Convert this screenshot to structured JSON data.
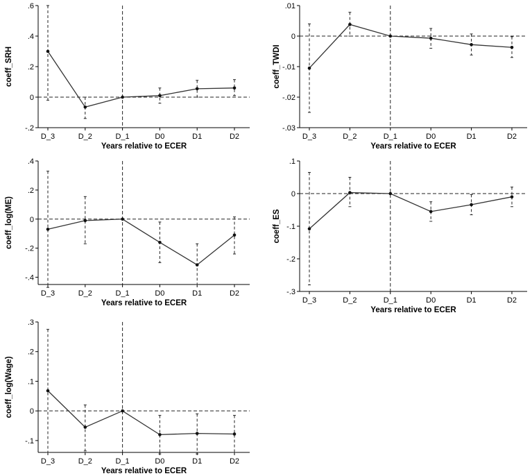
{
  "chart_data": [
    {
      "type": "line",
      "title": "",
      "xlabel": "Years relative to ECER",
      "ylabel": "coeff_SRH",
      "categories": [
        "D_3",
        "D_2",
        "D_1",
        "D0",
        "D1",
        "D2"
      ],
      "values": [
        0.3,
        -0.065,
        0.0,
        0.01,
        0.055,
        0.06
      ],
      "ci_low": [
        -0.02,
        -0.14,
        0.0,
        -0.04,
        0.0,
        0.01
      ],
      "ci_high": [
        0.6,
        0.0,
        0.0,
        0.06,
        0.11,
        0.115
      ],
      "ylim": [
        -0.2,
        0.6
      ],
      "yticks": [
        -0.2,
        0,
        0.2,
        0.4,
        0.6
      ],
      "ytick_labels": [
        "-.2",
        "0",
        ".2",
        ".4",
        ".6"
      ],
      "reference_x": "D_1",
      "reference_y": 0
    },
    {
      "type": "line",
      "title": "",
      "xlabel": "Years relative to ECER",
      "ylabel": "coeff_TWDI",
      "categories": [
        "D_3",
        "D_2",
        "D_1",
        "D0",
        "D1",
        "D2"
      ],
      "values": [
        -0.0105,
        0.0038,
        0.0,
        -0.0007,
        -0.0028,
        -0.0037
      ],
      "ci_low": [
        -0.025,
        0.0,
        0.0,
        -0.004,
        -0.0062,
        -0.007
      ],
      "ci_high": [
        0.004,
        0.0078,
        0.0,
        0.0025,
        0.0007,
        -0.0002
      ],
      "ylim": [
        -0.03,
        0.01
      ],
      "yticks": [
        -0.03,
        -0.02,
        -0.01,
        0,
        0.01
      ],
      "ytick_labels": [
        "-.03",
        "-.02",
        "-.01",
        "0",
        ".01"
      ],
      "reference_x": "D_1",
      "reference_y": 0
    },
    {
      "type": "line",
      "title": "",
      "xlabel": "Years relative to ECER",
      "ylabel": "coeff_log(ME)",
      "categories": [
        "D_3",
        "D_2",
        "D_1",
        "D0",
        "D1",
        "D2"
      ],
      "values": [
        -0.07,
        -0.01,
        0.0,
        -0.16,
        -0.315,
        -0.11
      ],
      "ci_low": [
        -0.47,
        -0.17,
        0.0,
        -0.3,
        -0.45,
        -0.24
      ],
      "ci_high": [
        0.33,
        0.155,
        0.0,
        -0.02,
        -0.17,
        0.015
      ],
      "ylim": [
        -0.45,
        0.4
      ],
      "yticks": [
        -0.4,
        -0.2,
        0,
        0.2,
        0.4
      ],
      "ytick_labels": [
        "-.4",
        "-.2",
        "0",
        ".2",
        ".4"
      ],
      "reference_x": "D_1",
      "reference_y": 0
    },
    {
      "type": "line",
      "title": "",
      "xlabel": "Years relative to ECER",
      "ylabel": "coeff_ES",
      "categories": [
        "D_3",
        "D_2",
        "D_1",
        "D0",
        "D1",
        "D2"
      ],
      "values": [
        -0.108,
        0.003,
        0.0,
        -0.055,
        -0.034,
        -0.01
      ],
      "ci_low": [
        -0.28,
        -0.04,
        0.0,
        -0.085,
        -0.065,
        -0.04
      ],
      "ci_high": [
        0.065,
        0.05,
        0.0,
        -0.025,
        -0.003,
        0.02
      ],
      "ylim": [
        -0.3,
        0.1
      ],
      "yticks": [
        -0.3,
        -0.2,
        -0.1,
        0,
        0.1
      ],
      "ytick_labels": [
        "-.3",
        "-.2",
        "-.1",
        "0",
        ".1"
      ],
      "reference_x": "D_1",
      "reference_y": 0
    },
    {
      "type": "line",
      "title": "",
      "xlabel": "Years relative to ECER",
      "ylabel": "coeff_log(Wage)",
      "categories": [
        "D_3",
        "D_2",
        "D_1",
        "D0",
        "D1",
        "D2"
      ],
      "values": [
        0.068,
        -0.055,
        0.0,
        -0.08,
        -0.076,
        -0.078
      ],
      "ci_low": [
        -0.14,
        -0.135,
        0.0,
        -0.145,
        -0.145,
        -0.14
      ],
      "ci_high": [
        0.275,
        0.02,
        0.0,
        -0.015,
        -0.01,
        -0.015
      ],
      "ylim": [
        -0.14,
        0.3
      ],
      "yticks": [
        -0.1,
        0,
        0.1,
        0.2,
        0.3
      ],
      "ytick_labels": [
        "-.1",
        "0",
        ".1",
        ".2",
        ".3"
      ],
      "reference_x": "D_1",
      "reference_y": 0
    }
  ]
}
